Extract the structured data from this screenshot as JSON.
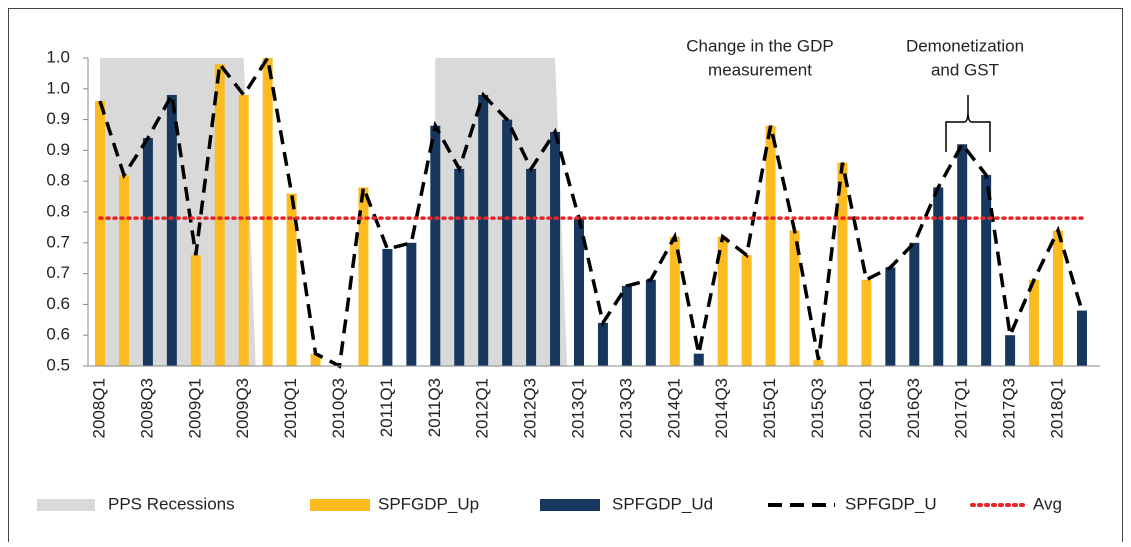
{
  "chart_data": {
    "type": "bar",
    "categories": [
      "2008Q1",
      null,
      "2008Q3",
      null,
      "2009Q1",
      null,
      "2009Q3",
      null,
      "2010Q1",
      null,
      "2010Q3",
      null,
      "2011Q1",
      null,
      "2011Q3",
      null,
      "2012Q1",
      null,
      "2012Q3",
      null,
      "2013Q1",
      null,
      "2013Q3",
      null,
      "2014Q1",
      null,
      "2014Q3",
      null,
      "2015Q1",
      null,
      "2015Q3",
      null,
      "2016Q1",
      null,
      "2016Q3",
      null,
      "2017Q1",
      null,
      "2017Q3",
      null,
      "2018Q1",
      null
    ],
    "series": [
      {
        "name": "PPS Recessions",
        "type": "area",
        "color": "#d9d9d9",
        "values": [
          1,
          1,
          1,
          1,
          1,
          1,
          1,
          null,
          null,
          null,
          null,
          null,
          null,
          null,
          1,
          1,
          1,
          1,
          1,
          1,
          null,
          null,
          null,
          null,
          null,
          null,
          null,
          null,
          null,
          null,
          null,
          null,
          null,
          null,
          null,
          null,
          null,
          null,
          null,
          null,
          null,
          null
        ]
      },
      {
        "name": "SPFGDP_Up",
        "type": "bar",
        "color": "#fbbb21",
        "values": [
          0.93,
          0.81,
          null,
          null,
          0.68,
          0.99,
          0.94,
          1.0,
          0.78,
          0.52,
          null,
          0.79,
          null,
          null,
          null,
          null,
          null,
          null,
          null,
          null,
          null,
          null,
          null,
          null,
          0.71,
          null,
          0.71,
          0.68,
          0.89,
          0.72,
          0.51,
          0.83,
          0.64,
          null,
          null,
          null,
          null,
          null,
          null,
          0.64,
          0.72,
          null
        ]
      },
      {
        "name": "SPFGDP_Ud",
        "type": "bar",
        "color": "#17375e",
        "values": [
          null,
          null,
          0.87,
          0.94,
          null,
          null,
          null,
          null,
          null,
          null,
          null,
          null,
          0.69,
          0.7,
          0.89,
          0.82,
          0.94,
          0.9,
          0.82,
          0.88,
          0.74,
          0.57,
          0.63,
          0.64,
          null,
          0.52,
          null,
          null,
          null,
          null,
          null,
          null,
          null,
          0.66,
          0.7,
          0.79,
          0.86,
          0.81,
          0.55,
          null,
          null,
          0.59
        ]
      },
      {
        "name": "SPFGDP_U",
        "type": "line",
        "dash": "dashed",
        "color": "#000000",
        "values": [
          0.93,
          0.81,
          0.87,
          0.94,
          0.68,
          0.99,
          0.94,
          1.0,
          0.78,
          0.52,
          0.5,
          0.79,
          0.69,
          0.7,
          0.89,
          0.82,
          0.94,
          0.9,
          0.82,
          0.88,
          0.74,
          0.57,
          0.63,
          0.64,
          0.71,
          0.52,
          0.71,
          0.68,
          0.89,
          0.72,
          0.51,
          0.83,
          0.64,
          0.66,
          0.7,
          0.79,
          0.86,
          0.81,
          0.55,
          0.64,
          0.72,
          0.59
        ]
      },
      {
        "name": "Avg",
        "type": "line",
        "dash": "dotted",
        "color": "#e8262a",
        "values": [
          0.74,
          0.74,
          0.74,
          0.74,
          0.74,
          0.74,
          0.74,
          0.74,
          0.74,
          0.74,
          0.74,
          0.74,
          0.74,
          0.74,
          0.74,
          0.74,
          0.74,
          0.74,
          0.74,
          0.74,
          0.74,
          0.74,
          0.74,
          0.74,
          0.74,
          0.74,
          0.74,
          0.74,
          0.74,
          0.74,
          0.74,
          0.74,
          0.74,
          0.74,
          0.74,
          0.74,
          0.74,
          0.74,
          0.74,
          0.74,
          0.74,
          0.74
        ]
      }
    ],
    "ylim": [
      0.5,
      1.0
    ],
    "yticks": [
      0.5,
      {
        "value": 0.55,
        "label": "0.6"
      },
      0.6,
      {
        "value": 0.65,
        "label": "0.7"
      },
      0.7,
      {
        "value": 0.75,
        "label": "0.8"
      },
      0.8,
      {
        "value": 0.85,
        "label": "0.9"
      },
      0.9,
      {
        "value": 0.95,
        "label": "1.0"
      },
      {
        "value": 1.0,
        "label": "1.0"
      }
    ],
    "annotations": [
      {
        "lines": [
          "Change in the GDP",
          "measurement"
        ]
      },
      {
        "lines": [
          "Demonetization",
          "and GST"
        ]
      }
    ],
    "legend": "bottom"
  }
}
